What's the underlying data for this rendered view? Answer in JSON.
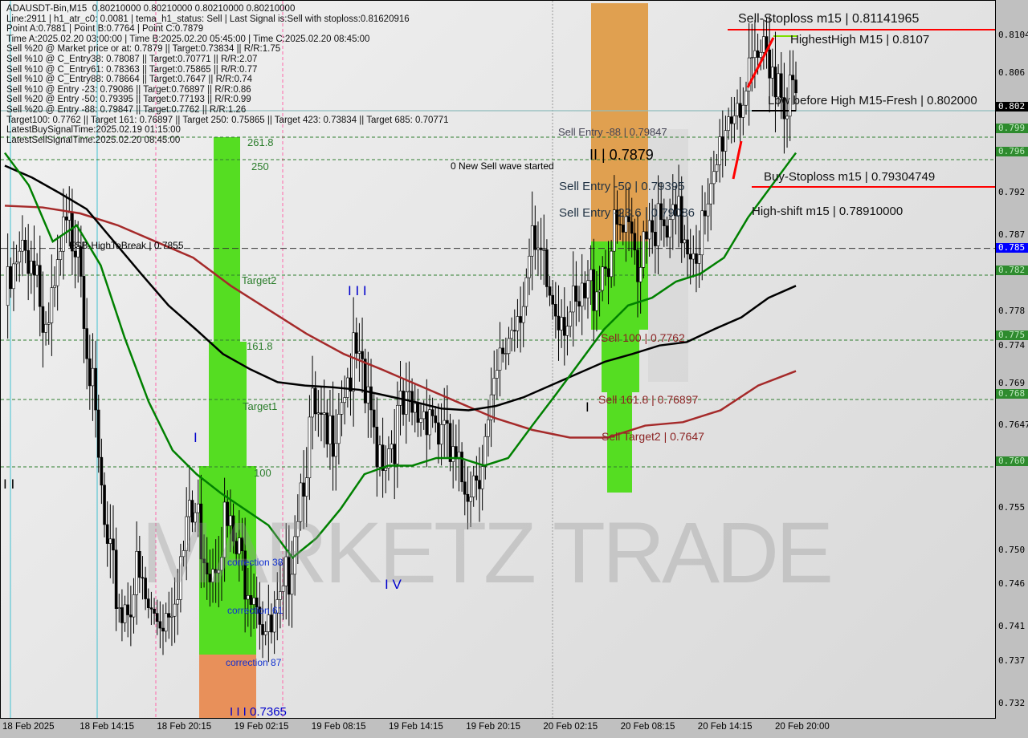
{
  "header": {
    "lines": [
      "ADAUSDT-Bin,M15  0.80210000 0.80210000 0.80210000 0.80210000",
      "Line:2911 | h1_atr_c0: 0.0081 | tema_h1_status: Sell | Last Signal is:Sell with stoploss:0.81620916",
      "Point A:0.7881 | Point B:0.7764 | Point C:0.7879",
      "Time A:2025.02.20 03:00:00 | Time B:2025.02.20 05:45:00 | Time C:2025.02.20 08:45:00",
      "Sell %20 @ Market price or at: 0.7879 || Target:0.73834 || R/R:1.75",
      "Sell %10 @ C_Entry38: 0.78087 || Target:0.70771 || R/R:2.07",
      "Sell %10 @ C_Entry61: 0.78363 || Target:0.75865 || R/R:0.77",
      "Sell %10 @ C_Entry88: 0.78664 || Target:0.7647 || R/R:0.74",
      "Sell %10 @ Entry -23: 0.79086 || Target:0.76897 || R/R:0.86",
      "Sell %20 @ Entry -50: 0.79395 || Target:0.77193 || R/R:0.99",
      "Sell %20 @ Entry -88: 0.79847 || Target:0.7762 || R/R:1.26",
      "Target100: 0.7762 || Target 161: 0.76897 || Target 250: 0.75865 || Target 423: 0.73834 || Target 685: 0.70771",
      "LatestBuySignalTime:2025.02.19 01:15:00",
      "LatestSellSignalTime:2025.02.20 08:45:00"
    ]
  },
  "annotations": {
    "sell_stoploss": "Sell-Stoploss m15 | 0.81141965",
    "highest_high": "HighestHigh   M15 | 0.8107",
    "low_before_high": "Low before High   M15-Fresh | 0.802000",
    "sell_entry_88": "Sell Entry -88 | 0.79847",
    "new_wave": "0 New Sell wave started",
    "point_ii": "II | 0.7879",
    "buy_stoploss": "Buy-Stoploss m15 | 0.79304749",
    "sell_entry_50": "Sell Entry -50 | 0.79395",
    "sell_entry_23": "Sell Entry -23.6 | 0.79086",
    "high_shift": "High-shift m15 | 0.78910000",
    "sell_100": "Sell 100 | 0.7762",
    "sell_161": "Sell 161.8 | 0.76897",
    "sell_target2": "Sell Target2 | 0.7647",
    "fsb": "FSB-HighToBreak | 0.7855",
    "lvl_2618": "261.8",
    "lvl_250": "250",
    "target2": "Target2",
    "lvl_1618": "161.8",
    "target1": "Target1",
    "lvl_100": "100",
    "corr38": "correction 38",
    "corr61": "correction 61",
    "corr87": "correction 87",
    "low": "I I I 0.7365",
    "w_iii": "I I I",
    "w_i": "I",
    "w_iv": "I V",
    "w_ii_left": "I I",
    "w_iv_top": "I V",
    "w_i_right": "I",
    "w_ii_r": "I I"
  },
  "watermark": "MARKETZ TRADE",
  "chart_data": {
    "type": "candlestick",
    "symbol": "ADAUSDT-Bin",
    "timeframe": "M15",
    "ylim": [
      0.7305,
      0.8122
    ],
    "price_ticks": [
      "0.8104",
      "0.806",
      "0.792",
      "0.787",
      "0.778",
      "0.774",
      "0.769",
      "0.7647",
      "0.755",
      "0.750",
      "0.746",
      "0.741",
      "0.737",
      "0.732"
    ],
    "price_tags": [
      {
        "v": "0.802",
        "c": "#000000",
        "p": 0.802
      },
      {
        "v": "0.799",
        "c": "#2e8b2e",
        "p": 0.7995
      },
      {
        "v": "0.796",
        "c": "#2e8b2e",
        "p": 0.7968
      },
      {
        "v": "0.785",
        "c": "#0000ff",
        "p": 0.7855
      },
      {
        "v": "0.782",
        "c": "#2e8b2e",
        "p": 0.7828
      },
      {
        "v": "0.775",
        "c": "#2e8b2e",
        "p": 0.7752
      },
      {
        "v": "0.768",
        "c": "#2e8b2e",
        "p": 0.7683
      },
      {
        "v": "0.760",
        "c": "#2e8b2e",
        "p": 0.7604
      }
    ],
    "time_ticks": [
      "18 Feb 2025",
      "18 Feb 14:15",
      "18 Feb 20:15",
      "19 Feb 02:15",
      "19 Feb 08:15",
      "19 Feb 14:15",
      "19 Feb 20:15",
      "20 Feb 02:15",
      "20 Feb 08:15",
      "20 Feb 14:15",
      "20 Feb 20:00"
    ],
    "close_path": [
      0.7788,
      0.7835,
      0.7863,
      0.775,
      0.7863,
      0.7882,
      0.7675,
      0.7487,
      0.743,
      0.7468,
      0.7421,
      0.743,
      0.7487,
      0.7543,
      0.7487,
      0.7534,
      0.7487,
      0.7468,
      0.7393,
      0.743,
      0.7562,
      0.7656,
      0.7618,
      0.7694,
      0.7722,
      0.7637,
      0.7618,
      0.7656,
      0.7656,
      0.7675,
      0.7618,
      0.7581,
      0.759,
      0.7637,
      0.7731,
      0.7788,
      0.7844,
      0.7807,
      0.7788,
      0.7769,
      0.7807,
      0.7844,
      0.7873,
      0.7844,
      0.7901,
      0.7863,
      0.7882,
      0.7863,
      0.7882,
      0.7995,
      0.8033,
      0.8042,
      0.8103,
      0.8051,
      0.8023
    ],
    "ma_fast": [
      0.7967,
      0.7929,
      0.7863,
      0.7882,
      0.7835,
      0.775,
      0.7675,
      0.7618,
      0.759,
      0.7568,
      0.7549,
      0.753,
      0.7492,
      0.7515,
      0.7549,
      0.759,
      0.76,
      0.76,
      0.7609,
      0.7609,
      0.76,
      0.7609,
      0.7647,
      0.7684,
      0.7722,
      0.776,
      0.7788,
      0.7797,
      0.7816,
      0.7825,
      0.7844,
      0.7891,
      0.7929,
      0.7967
    ],
    "ma_mid": [
      0.7952,
      0.7938,
      0.792,
      0.7901,
      0.7863,
      0.7825,
      0.7788,
      0.776,
      0.7731,
      0.7713,
      0.7698,
      0.7694,
      0.7692,
      0.7689,
      0.7682,
      0.7675,
      0.7667,
      0.7665,
      0.767,
      0.768,
      0.7694,
      0.7708,
      0.7722,
      0.7731,
      0.7741,
      0.7745,
      0.776,
      0.7774,
      0.7797,
      0.7811
    ],
    "ma_slow": [
      0.7905,
      0.7903,
      0.7896,
      0.7882,
      0.7863,
      0.7844,
      0.7811,
      0.7783,
      0.7755,
      0.7731,
      0.7713,
      0.7694,
      0.7675,
      0.7656,
      0.7642,
      0.7633,
      0.7633,
      0.7647,
      0.7651,
      0.7665,
      0.7694,
      0.7711
    ],
    "levels": {
      "sell_stoploss": 0.8114,
      "buy_stoploss": 0.793,
      "fsb": 0.7855,
      "fresh": 0.802
    },
    "colors": {
      "ma_fast": "#008000",
      "ma_mid": "#000000",
      "ma_slow": "#a52a2a",
      "box_green": "#55dd22",
      "box_orange": "#e0a050",
      "stop": "#ff0000",
      "up": "#00ff00",
      "down": "#ff0000"
    }
  }
}
